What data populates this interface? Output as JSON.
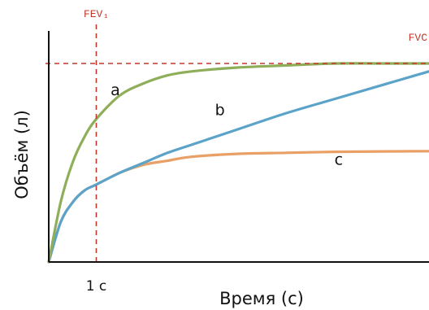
{
  "chart_data": {
    "type": "line",
    "xlabel": "Время (с)",
    "ylabel": "Объём (л)",
    "x_tick_labels": [
      {
        "x": 1,
        "label": "1 с"
      }
    ],
    "xlim": [
      0,
      8
    ],
    "ylim": [
      0,
      1
    ],
    "grid": false,
    "reference_lines": [
      {
        "orientation": "vertical",
        "x": 1,
        "label": "FEV₁",
        "color": "#c0392b"
      },
      {
        "orientation": "horizontal",
        "y": 1,
        "label": "FVC",
        "color": "#c0392b"
      }
    ],
    "series": [
      {
        "name": "a",
        "color": "#8fae5a",
        "x": [
          0,
          0.25,
          0.5,
          0.75,
          1,
          1.5,
          2,
          2.5,
          3,
          4,
          5,
          6,
          7,
          8
        ],
        "y": [
          0,
          0.3,
          0.5,
          0.63,
          0.72,
          0.84,
          0.9,
          0.94,
          0.96,
          0.98,
          0.99,
          1.0,
          1.0,
          1.0
        ]
      },
      {
        "name": "b",
        "color": "#5ba3c9",
        "x": [
          0,
          0.25,
          0.5,
          0.75,
          1,
          1.5,
          2,
          2.5,
          3,
          4,
          5,
          6,
          7,
          8
        ],
        "y": [
          0,
          0.2,
          0.3,
          0.36,
          0.39,
          0.45,
          0.5,
          0.55,
          0.59,
          0.67,
          0.75,
          0.82,
          0.89,
          0.96
        ]
      },
      {
        "name": "c",
        "color": "#e8a066",
        "x": [
          0,
          0.25,
          0.5,
          0.75,
          1,
          1.5,
          2,
          2.5,
          3,
          4,
          5,
          6,
          7,
          8
        ],
        "y": [
          0,
          0.2,
          0.3,
          0.36,
          0.39,
          0.45,
          0.49,
          0.51,
          0.53,
          0.545,
          0.55,
          0.555,
          0.557,
          0.558
        ]
      }
    ],
    "curve_labels": [
      {
        "text": "a",
        "x": 1.4,
        "y": 0.84
      },
      {
        "text": "b",
        "x": 3.6,
        "y": 0.74
      },
      {
        "text": "c",
        "x": 6.1,
        "y": 0.49
      }
    ]
  }
}
